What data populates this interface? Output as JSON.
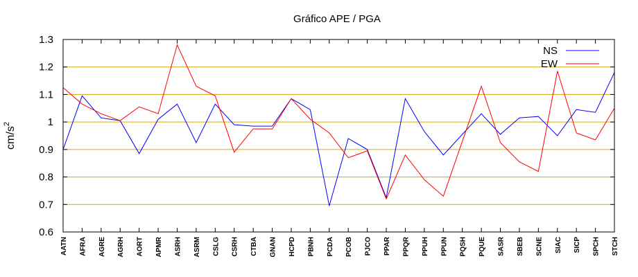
{
  "chart_data": {
    "type": "line",
    "title": "Gráfico  APE / PGA",
    "xlabel": "",
    "ylabel": "cm/s",
    "ylabel_superscript": "2",
    "ylim": [
      0.6,
      1.3
    ],
    "yticks": [
      0.6,
      0.7,
      0.8,
      0.9,
      1,
      1.1,
      1.2,
      1.3
    ],
    "ytick_labels": [
      "0.6",
      "0.7",
      "0.8",
      "0.9",
      "1",
      "1.1",
      "1.2",
      "1.3"
    ],
    "grid": true,
    "legend_position": "top-right",
    "categories": [
      "AATN",
      "AFRA",
      "AGRE",
      "AGRH",
      "AORT",
      "APMR",
      "ASRH",
      "ASRM",
      "CSLG",
      "CSRH",
      "CTBA",
      "GNAN",
      "HCPD",
      "PBNH",
      "PCDA",
      "PCOB",
      "PJCO",
      "PPAR",
      "PPQR",
      "PPUH",
      "PPUN",
      "PQSH",
      "PQUE",
      "SASR",
      "SBEB",
      "SCNE",
      "SIAC",
      "SICP",
      "SPCH",
      "STCH"
    ],
    "series": [
      {
        "name": "NS",
        "color": "#0000ff",
        "values": [
          0.9,
          1.095,
          1.015,
          1.005,
          0.885,
          1.01,
          1.065,
          0.925,
          1.065,
          0.99,
          0.985,
          0.985,
          1.085,
          1.045,
          0.695,
          0.94,
          0.9,
          0.725,
          1.085,
          0.965,
          0.88,
          0.955,
          1.03,
          0.955,
          1.015,
          1.02,
          0.95,
          1.045,
          1.035,
          1.18
        ]
      },
      {
        "name": "EW",
        "color": "#ff0000",
        "values": [
          1.125,
          1.065,
          1.03,
          1.005,
          1.055,
          1.03,
          1.28,
          1.13,
          1.095,
          0.89,
          0.975,
          0.975,
          1.085,
          1.01,
          0.96,
          0.87,
          0.895,
          0.72,
          0.88,
          0.79,
          0.73,
          0.93,
          1.13,
          0.925,
          0.855,
          0.82,
          1.185,
          0.96,
          0.935,
          1.05
        ]
      }
    ],
    "colors": {
      "grid": "#d4aa00",
      "axis": "#000000"
    }
  }
}
